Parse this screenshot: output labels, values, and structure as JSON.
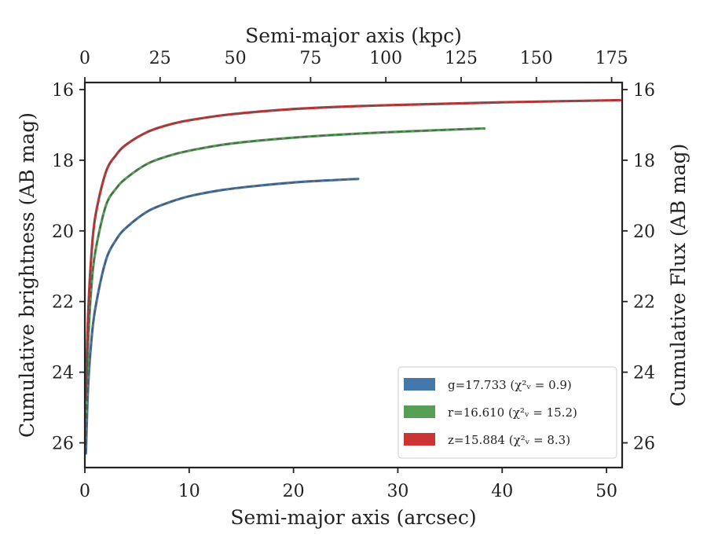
{
  "chart_data": {
    "type": "line",
    "title": "",
    "xlabel": "Semi-major axis (arcsec)",
    "ylabel": "Cumulative brightness (AB mag)",
    "x2label": "Semi-major axis (kpc)",
    "y2label": "Cumulative Flux (AB mag)",
    "xlim": [
      0,
      51.5
    ],
    "ylim": [
      26.7,
      15.8
    ],
    "y_inverted": true,
    "x2lim": [
      0,
      178.5
    ],
    "xticks": [
      "0",
      "10",
      "20",
      "30",
      "40",
      "50"
    ],
    "yticks": [
      "16",
      "18",
      "20",
      "22",
      "24",
      "26"
    ],
    "x2ticks": [
      "0",
      "25",
      "50",
      "75",
      "100",
      "125",
      "150",
      "175"
    ],
    "y2ticks": [
      "16",
      "18",
      "20",
      "22",
      "24",
      "26"
    ],
    "legend_position": "lower right",
    "grid": false,
    "series": [
      {
        "name": "g=17.733 (χ²ᵥ = 0.9)",
        "color": "#4477aa",
        "x": [
          0.1,
          0.3,
          0.6,
          1.0,
          2.0,
          3.0,
          4.0,
          6.0,
          8.0,
          10.0,
          13.0,
          16.0,
          20.0,
          24.0,
          26.2
        ],
        "y": [
          26.3,
          24.5,
          23.2,
          22.2,
          20.85,
          20.25,
          19.9,
          19.45,
          19.2,
          19.02,
          18.85,
          18.74,
          18.63,
          18.56,
          18.53
        ]
      },
      {
        "name": "r=16.610 (χ²ᵥ = 15.2)",
        "color": "#55a055",
        "x": [
          0.1,
          0.3,
          0.6,
          1.0,
          2.0,
          3.0,
          4.0,
          6.0,
          8.0,
          10.0,
          14.0,
          20.0,
          26.0,
          32.0,
          38.3
        ],
        "y": [
          25.3,
          23.3,
          21.7,
          20.6,
          19.3,
          18.8,
          18.5,
          18.1,
          17.88,
          17.73,
          17.53,
          17.36,
          17.25,
          17.17,
          17.1
        ]
      },
      {
        "name": "z=15.884 (χ²ᵥ = 8.3)",
        "color": "#cc3333",
        "x": [
          0.1,
          0.3,
          0.6,
          1.0,
          2.0,
          3.0,
          4.0,
          6.0,
          8.0,
          10.0,
          14.0,
          20.0,
          26.0,
          32.0,
          40.0,
          51.3
        ],
        "y": [
          24.7,
          22.5,
          20.8,
          19.6,
          18.35,
          17.85,
          17.55,
          17.2,
          17.0,
          16.87,
          16.7,
          16.55,
          16.47,
          16.42,
          16.36,
          16.3
        ]
      }
    ]
  }
}
